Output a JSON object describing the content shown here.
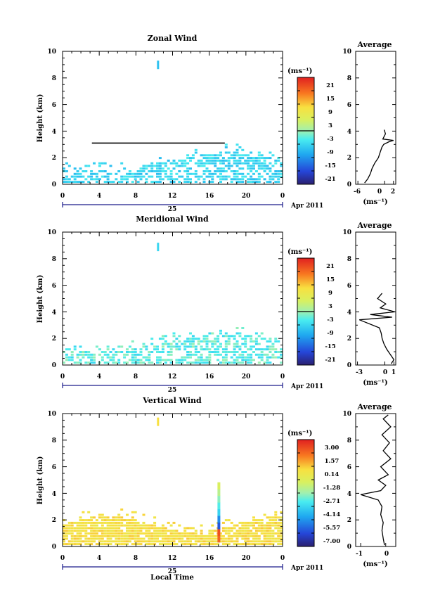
{
  "chart_data": [
    {
      "type": "heatmap",
      "title": "Zonal Wind",
      "ylabel": "Height (km)",
      "xticks": [
        "0",
        "4",
        "8",
        "12",
        "16",
        "20",
        "0"
      ],
      "yticks": [
        "0",
        "2",
        "4",
        "6",
        "8",
        "10"
      ],
      "xlim": [
        0,
        24
      ],
      "ylim": [
        0,
        10
      ],
      "date_label": "25",
      "month_label": "Apr 2011",
      "colorbar_unit": "(ms⁻¹)",
      "colorbar_ticks": [
        "21",
        "15",
        "9",
        "3",
        "-3",
        "-9",
        "-15",
        "-21"
      ],
      "colorbar_range": [
        -24,
        24
      ],
      "profile": {
        "title": "Average",
        "xticks": [
          "-6",
          "0",
          "2"
        ],
        "xlim": [
          -6.5,
          2.5
        ],
        "unit": "(ms⁻¹)",
        "points": [
          [
            -4.5,
            0.1
          ],
          [
            -3.8,
            0.4
          ],
          [
            -3.2,
            0.8
          ],
          [
            -2.8,
            1.2
          ],
          [
            -2.2,
            1.6
          ],
          [
            -1.4,
            2.0
          ],
          [
            -1.0,
            2.4
          ],
          [
            -0.6,
            2.8
          ],
          [
            -0.2,
            3.0
          ],
          [
            1.0,
            3.2
          ],
          [
            2.0,
            3.3
          ],
          [
            -0.4,
            3.4
          ],
          [
            0.2,
            3.8
          ],
          [
            -0.1,
            4.1
          ]
        ]
      }
    },
    {
      "type": "heatmap",
      "title": "Meridional Wind",
      "ylabel": "Height (km)",
      "xticks": [
        "0",
        "4",
        "8",
        "12",
        "16",
        "20",
        "0"
      ],
      "yticks": [
        "0",
        "2",
        "4",
        "6",
        "8",
        "10"
      ],
      "xlim": [
        0,
        24
      ],
      "ylim": [
        0,
        10
      ],
      "date_label": "25",
      "month_label": "Apr 2011",
      "colorbar_unit": "(ms⁻¹)",
      "colorbar_ticks": [
        "21",
        "15",
        "9",
        "3",
        "-3",
        "-9",
        "-15",
        "-21"
      ],
      "colorbar_range": [
        -24,
        24
      ],
      "profile": {
        "title": "Average",
        "xticks": [
          "-3",
          "0",
          "1"
        ],
        "xlim": [
          -3.2,
          1.2
        ],
        "unit": "(ms⁻¹)",
        "points": [
          [
            0.7,
            0.1
          ],
          [
            1.0,
            0.4
          ],
          [
            0.6,
            0.8
          ],
          [
            0.2,
            1.2
          ],
          [
            -0.1,
            1.6
          ],
          [
            -0.3,
            2.0
          ],
          [
            -0.4,
            2.4
          ],
          [
            -0.6,
            2.8
          ],
          [
            -2.8,
            3.4
          ],
          [
            0.8,
            3.6
          ],
          [
            -1.6,
            3.8
          ],
          [
            1.1,
            4.0
          ],
          [
            -0.5,
            4.3
          ],
          [
            0.1,
            4.6
          ],
          [
            -0.8,
            5.0
          ],
          [
            -0.3,
            5.4
          ]
        ]
      }
    },
    {
      "type": "heatmap",
      "title": "Vertical Wind",
      "ylabel": "Height (km)",
      "xlabel": "Local Time",
      "xticks": [
        "0",
        "4",
        "8",
        "12",
        "16",
        "20",
        "0"
      ],
      "yticks": [
        "0",
        "2",
        "4",
        "6",
        "8",
        "10"
      ],
      "xlim": [
        0,
        24
      ],
      "ylim": [
        0,
        10
      ],
      "date_label": "25",
      "month_label": "Apr 2011",
      "colorbar_unit": "(ms⁻¹)",
      "colorbar_ticks": [
        "3.00",
        "1.57",
        "0.14",
        "-1.28",
        "-2.71",
        "-4.14",
        "-5.57",
        "-7.00"
      ],
      "colorbar_range": [
        -7.7,
        3.7
      ],
      "profile": {
        "title": "Average",
        "xticks": [
          "-1",
          "0"
        ],
        "xlim": [
          -1.2,
          0.4
        ],
        "unit": "(ms⁻¹)",
        "points": [
          [
            -0.05,
            0.1
          ],
          [
            -0.1,
            0.6
          ],
          [
            -0.15,
            1.2
          ],
          [
            -0.1,
            1.8
          ],
          [
            -0.2,
            2.4
          ],
          [
            -0.15,
            3.0
          ],
          [
            -0.3,
            3.5
          ],
          [
            -1.0,
            3.9
          ],
          [
            -0.2,
            4.2
          ],
          [
            0.0,
            4.6
          ],
          [
            -0.3,
            5.0
          ],
          [
            0.1,
            5.4
          ],
          [
            -0.2,
            6.0
          ],
          [
            0.2,
            6.6
          ],
          [
            -0.1,
            7.2
          ],
          [
            0.15,
            7.8
          ],
          [
            -0.15,
            8.4
          ],
          [
            0.2,
            9.0
          ],
          [
            -0.1,
            9.6
          ],
          [
            0.1,
            9.9
          ]
        ]
      }
    }
  ]
}
